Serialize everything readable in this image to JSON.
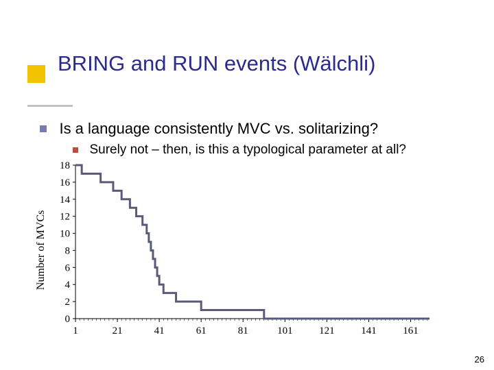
{
  "title": "BRING and RUN events (Wälchli)",
  "bullets": {
    "l1": "Is a language consistently MVC vs. solitarizing?",
    "l2": "Surely not – then, is this a typological parameter at all?"
  },
  "page_number": "26",
  "chart": {
    "type": "line-step",
    "ylabel": "Number of MVCs",
    "label_fontsize": 16,
    "tick_fontsize": 15,
    "axis_color": "#000000",
    "line_color": "#5a5a7a",
    "line_width": 3,
    "background_color": "#ffffff",
    "xlim": [
      1,
      170
    ],
    "ylim": [
      0,
      18
    ],
    "ytick_step": 2,
    "yticks": [
      0,
      2,
      4,
      6,
      8,
      10,
      12,
      14,
      16,
      18
    ],
    "xticks": [
      1,
      21,
      41,
      61,
      81,
      101,
      121,
      141,
      161
    ],
    "minor_xtick_step": 2,
    "series": [
      {
        "x": 1,
        "y": 18
      },
      {
        "x": 3,
        "y": 18
      },
      {
        "x": 4,
        "y": 17
      },
      {
        "x": 12,
        "y": 17
      },
      {
        "x": 13,
        "y": 16
      },
      {
        "x": 18,
        "y": 16
      },
      {
        "x": 19,
        "y": 15
      },
      {
        "x": 22,
        "y": 15
      },
      {
        "x": 23,
        "y": 14
      },
      {
        "x": 26,
        "y": 14
      },
      {
        "x": 27,
        "y": 13
      },
      {
        "x": 29,
        "y": 13
      },
      {
        "x": 30,
        "y": 12
      },
      {
        "x": 32,
        "y": 12
      },
      {
        "x": 33,
        "y": 11
      },
      {
        "x": 34,
        "y": 11
      },
      {
        "x": 35,
        "y": 10
      },
      {
        "x": 36,
        "y": 9
      },
      {
        "x": 37,
        "y": 8
      },
      {
        "x": 38,
        "y": 7
      },
      {
        "x": 39,
        "y": 6
      },
      {
        "x": 40,
        "y": 5
      },
      {
        "x": 41,
        "y": 4
      },
      {
        "x": 43,
        "y": 3
      },
      {
        "x": 48,
        "y": 3
      },
      {
        "x": 49,
        "y": 2
      },
      {
        "x": 60,
        "y": 2
      },
      {
        "x": 61,
        "y": 1
      },
      {
        "x": 90,
        "y": 1
      },
      {
        "x": 91,
        "y": 0
      },
      {
        "x": 170,
        "y": 0
      }
    ]
  }
}
